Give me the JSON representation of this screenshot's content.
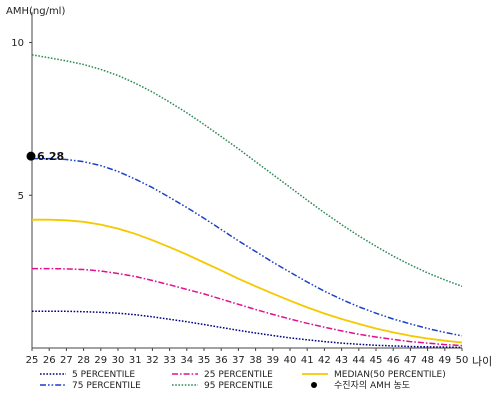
{
  "chart_data": {
    "type": "line",
    "ylabel": "AMH(ng/ml)",
    "xlabel": "나이",
    "x": [
      25,
      26,
      27,
      28,
      29,
      30,
      31,
      32,
      33,
      34,
      35,
      36,
      37,
      38,
      39,
      40,
      41,
      42,
      43,
      44,
      45,
      46,
      47,
      48,
      49,
      50
    ],
    "xlim": [
      25,
      50
    ],
    "ylim": [
      0,
      11
    ],
    "yticks": [
      5,
      10
    ],
    "grid": false,
    "legend_position": "bottom",
    "series": [
      {
        "name": "5 PERCENTILE",
        "color": "#000080",
        "dash": "dotted",
        "values": [
          1.2,
          1.2,
          1.2,
          1.19,
          1.17,
          1.14,
          1.09,
          1.02,
          0.94,
          0.86,
          0.77,
          0.67,
          0.58,
          0.49,
          0.41,
          0.33,
          0.27,
          0.21,
          0.16,
          0.12,
          0.09,
          0.07,
          0.05,
          0.04,
          0.03,
          0.02
        ]
      },
      {
        "name": "25 PERCENTILE",
        "color": "#e0108f",
        "dash": "dashdot",
        "values": [
          2.6,
          2.6,
          2.59,
          2.57,
          2.52,
          2.44,
          2.34,
          2.21,
          2.07,
          1.92,
          1.77,
          1.6,
          1.43,
          1.26,
          1.1,
          0.95,
          0.81,
          0.68,
          0.56,
          0.45,
          0.36,
          0.28,
          0.21,
          0.16,
          0.11,
          0.08
        ]
      },
      {
        "name": "MEDIAN(50 PERCENTILE)",
        "color": "#f5c800",
        "dash": "solid",
        "values": [
          4.2,
          4.2,
          4.18,
          4.13,
          4.04,
          3.91,
          3.74,
          3.53,
          3.3,
          3.06,
          2.8,
          2.54,
          2.27,
          2.02,
          1.78,
          1.55,
          1.33,
          1.13,
          0.95,
          0.79,
          0.64,
          0.51,
          0.4,
          0.31,
          0.24,
          0.18
        ]
      },
      {
        "name": "75 PERCENTILE",
        "color": "#1a3fc8",
        "dash": "dashdotdot",
        "values": [
          6.2,
          6.2,
          6.17,
          6.1,
          5.97,
          5.78,
          5.53,
          5.25,
          4.93,
          4.6,
          4.25,
          3.88,
          3.51,
          3.16,
          2.81,
          2.48,
          2.16,
          1.86,
          1.59,
          1.35,
          1.14,
          0.95,
          0.79,
          0.64,
          0.51,
          0.4
        ]
      },
      {
        "name": "95 PERCENTILE",
        "color": "#2e8b57",
        "dash": "dotted",
        "values": [
          9.6,
          9.5,
          9.4,
          9.28,
          9.12,
          8.92,
          8.67,
          8.38,
          8.05,
          7.7,
          7.32,
          6.92,
          6.52,
          6.1,
          5.68,
          5.26,
          4.84,
          4.43,
          4.04,
          3.67,
          3.33,
          3.01,
          2.72,
          2.46,
          2.23,
          2.02
        ]
      }
    ],
    "marker": {
      "name": "수진자의 AMH 농도",
      "color": "#000000",
      "x": 25,
      "y": 6.28,
      "label": "6.28"
    }
  }
}
